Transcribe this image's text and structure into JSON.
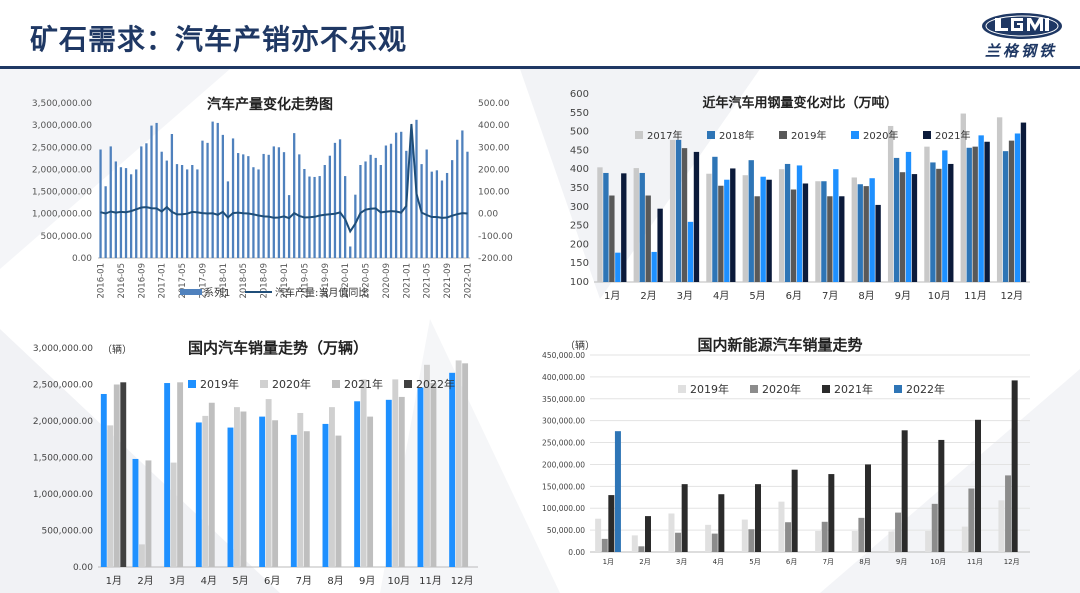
{
  "page": {
    "title": "矿石需求：汽车产销亦不乐观",
    "logo_text": "兰格钢铁"
  },
  "chart_data": [
    {
      "type": "bar+line",
      "title": "汽车产量变化走势图",
      "x": [
        "2016-01",
        "2016-02",
        "2016-03",
        "2016-04",
        "2016-05",
        "2016-06",
        "2016-07",
        "2016-08",
        "2016-09",
        "2016-10",
        "2016-11",
        "2016-12",
        "2017-01",
        "2017-02",
        "2017-03",
        "2017-04",
        "2017-05",
        "2017-06",
        "2017-07",
        "2017-08",
        "2017-09",
        "2017-10",
        "2017-11",
        "2017-12",
        "2018-01",
        "2018-02",
        "2018-03",
        "2018-04",
        "2018-05",
        "2018-06",
        "2018-07",
        "2018-08",
        "2018-09",
        "2018-10",
        "2018-11",
        "2018-12",
        "2019-01",
        "2019-02",
        "2019-03",
        "2019-04",
        "2019-05",
        "2019-06",
        "2019-07",
        "2019-08",
        "2019-09",
        "2019-10",
        "2019-11",
        "2019-12",
        "2020-01",
        "2020-02",
        "2020-03",
        "2020-04",
        "2020-05",
        "2020-06",
        "2020-07",
        "2020-08",
        "2020-09",
        "2020-10",
        "2020-11",
        "2020-12",
        "2021-01",
        "2021-02",
        "2021-03",
        "2021-04",
        "2021-05",
        "2021-06",
        "2021-07",
        "2021-08",
        "2021-09",
        "2021-10",
        "2021-11",
        "2021-12",
        "2022-01"
      ],
      "xticks": [
        "2016-01",
        "2016-05",
        "2016-09",
        "2017-01",
        "2017-05",
        "2017-09",
        "2018-01",
        "2018-05",
        "2018-09",
        "2019-01",
        "2019-05",
        "2019-09",
        "2020-01",
        "2020-05",
        "2020-09",
        "2021-01",
        "2021-05",
        "2021-09",
        "2022-01"
      ],
      "series": [
        {
          "name": "系列1",
          "axis": "left",
          "kind": "bar",
          "values": [
            2450000,
            1620000,
            2520000,
            2180000,
            2050000,
            2030000,
            1890000,
            2000000,
            2520000,
            2590000,
            2990000,
            3050000,
            2400000,
            2200000,
            2800000,
            2120000,
            2100000,
            2000000,
            2100000,
            2000000,
            2650000,
            2600000,
            3080000,
            3050000,
            2780000,
            1730000,
            2700000,
            2370000,
            2340000,
            2300000,
            2050000,
            2000000,
            2350000,
            2330000,
            2520000,
            2500000,
            2390000,
            1420000,
            2820000,
            2340000,
            2010000,
            1840000,
            1830000,
            1850000,
            2100000,
            2310000,
            2600000,
            2680000,
            1850000,
            260000,
            1430000,
            2100000,
            2180000,
            2330000,
            2260000,
            2100000,
            2540000,
            2580000,
            2830000,
            2850000,
            2420000,
            2900000,
            3120000,
            2120000,
            2450000,
            1950000,
            1980000,
            1750000,
            1920000,
            2210000,
            2670000,
            2880000,
            2400000
          ]
        },
        {
          "name": "汽车产量:当月值同比",
          "axis": "right",
          "kind": "line",
          "values": [
            7,
            1,
            10,
            5,
            8,
            7,
            12,
            20,
            28,
            30,
            25,
            24,
            10,
            30,
            8,
            -3,
            -2,
            0,
            8,
            6,
            3,
            1,
            2,
            -5,
            8,
            -17,
            3,
            5,
            2,
            1,
            -3,
            -8,
            -12,
            -13,
            -18,
            -17,
            -12,
            -20,
            3,
            -10,
            -17,
            -16,
            -14,
            -8,
            -5,
            -2,
            0,
            6,
            -25,
            -80,
            -45,
            3,
            18,
            22,
            24,
            6,
            9,
            12,
            10,
            5,
            35,
            405,
            90,
            5,
            -6,
            -15,
            -15,
            -19,
            -17,
            -9,
            -2,
            3,
            1
          ]
        }
      ],
      "ylim_left": [
        0,
        3500000
      ],
      "yticks_left": [
        "3,500,000.00",
        "3,000,000.00",
        "2,500,000.00",
        "2,000,000.00",
        "1,500,000.00",
        "1,000,000.00",
        "500,000.00",
        "0.00"
      ],
      "ylim_right": [
        -200,
        500
      ],
      "yticks_right": [
        "500.00",
        "400.00",
        "300.00",
        "200.00",
        "100.00",
        "0.00",
        "-100.00",
        "-200.00"
      ],
      "legend": [
        "系列1",
        "汽车产量:当月值同比"
      ],
      "colors": {
        "bar": "#4f81bd",
        "line": "#1f4e79"
      }
    },
    {
      "type": "bar",
      "title": "近年汽车用钢量变化对比（万吨）",
      "categories": [
        "1月",
        "2月",
        "3月",
        "4月",
        "5月",
        "6月",
        "7月",
        "8月",
        "9月",
        "10月",
        "11月",
        "12月"
      ],
      "series": [
        {
          "name": "2017年",
          "color": "#c9c9c9",
          "values": [
            405,
            403,
            478,
            388,
            384,
            400,
            368,
            378,
            515,
            460,
            548,
            538
          ]
        },
        {
          "name": "2018年",
          "color": "#2e75b6",
          "values": [
            390,
            390,
            478,
            433,
            424,
            414,
            368,
            360,
            430,
            418,
            457,
            448
          ]
        },
        {
          "name": "2019年",
          "color": "#595959",
          "values": [
            330,
            330,
            456,
            356,
            328,
            346,
            328,
            355,
            392,
            401,
            460,
            476
          ]
        },
        {
          "name": "2020年",
          "color": "#1e90ff",
          "values": [
            178,
            180,
            260,
            372,
            380,
            410,
            400,
            376,
            446,
            450,
            490,
            495
          ]
        },
        {
          "name": "2021年",
          "color": "#0b1a3a",
          "values": [
            389,
            295,
            446,
            402,
            372,
            362,
            328,
            305,
            387,
            414,
            473,
            524
          ]
        }
      ],
      "ylim": [
        100,
        600
      ],
      "yticks": [
        "600",
        "550",
        "500",
        "450",
        "400",
        "350",
        "300",
        "250",
        "200",
        "150",
        "100"
      ]
    },
    {
      "type": "bar",
      "title": "国内汽车销量走势（万辆）",
      "unit": "（辆）",
      "categories": [
        "1月",
        "2月",
        "3月",
        "4月",
        "5月",
        "6月",
        "7月",
        "8月",
        "9月",
        "10月",
        "11月",
        "12月"
      ],
      "series": [
        {
          "name": "2019年",
          "color": "#1e90ff",
          "values": [
            2370000,
            1480000,
            2520000,
            1980000,
            1910000,
            2060000,
            1810000,
            1960000,
            2270000,
            2290000,
            2460000,
            2660000
          ]
        },
        {
          "name": "2020年",
          "color": "#d0d0d0",
          "values": [
            1940000,
            310000,
            1430000,
            2070000,
            2190000,
            2300000,
            2110000,
            2190000,
            2570000,
            2570000,
            2770000,
            2830000
          ]
        },
        {
          "name": "2021年",
          "color": "#bfbfbf",
          "values": [
            2500000,
            1460000,
            2530000,
            2250000,
            2130000,
            2010000,
            1860000,
            1800000,
            2060000,
            2330000,
            2520000,
            2790000
          ]
        },
        {
          "name": "2022年",
          "color": "#404040",
          "values": [
            2530000,
            0,
            0,
            0,
            0,
            0,
            0,
            0,
            0,
            0,
            0,
            0
          ]
        }
      ],
      "ylim": [
        0,
        3000000
      ],
      "yticks": [
        "3,000,000.00",
        "2,500,000.00",
        "2,000,000.00",
        "1,500,000.00",
        "1,000,000.00",
        "500,000.00",
        "0.00"
      ]
    },
    {
      "type": "bar",
      "title": "国内新能源汽车销量走势",
      "unit": "（辆）",
      "categories": [
        "1月",
        "2月",
        "3月",
        "4月",
        "5月",
        "6月",
        "7月",
        "8月",
        "9月",
        "10月",
        "11月",
        "12月"
      ],
      "series": [
        {
          "name": "2019年",
          "color": "#e0e0e0",
          "values": [
            76000,
            38000,
            88000,
            62000,
            74000,
            115000,
            48000,
            48000,
            47000,
            48000,
            58000,
            118000
          ]
        },
        {
          "name": "2020年",
          "color": "#8c8c8c",
          "values": [
            30000,
            13000,
            44000,
            42000,
            52000,
            68000,
            69000,
            78000,
            90000,
            110000,
            145000,
            175000
          ]
        },
        {
          "name": "2021年",
          "color": "#2b2b2b",
          "values": [
            130000,
            82000,
            155000,
            132000,
            155000,
            188000,
            178000,
            200000,
            278000,
            256000,
            302000,
            392000
          ]
        },
        {
          "name": "2022年",
          "color": "#2e75b6",
          "values": [
            276000,
            0,
            0,
            0,
            0,
            0,
            0,
            0,
            0,
            0,
            0,
            0
          ]
        }
      ],
      "ylim": [
        0,
        450000
      ],
      "yticks": [
        "450,000.00",
        "400,000.00",
        "350,000.00",
        "300,000.00",
        "250,000.00",
        "200,000.00",
        "150,000.00",
        "100,000.00",
        "50,000.00",
        "0.00"
      ]
    }
  ]
}
